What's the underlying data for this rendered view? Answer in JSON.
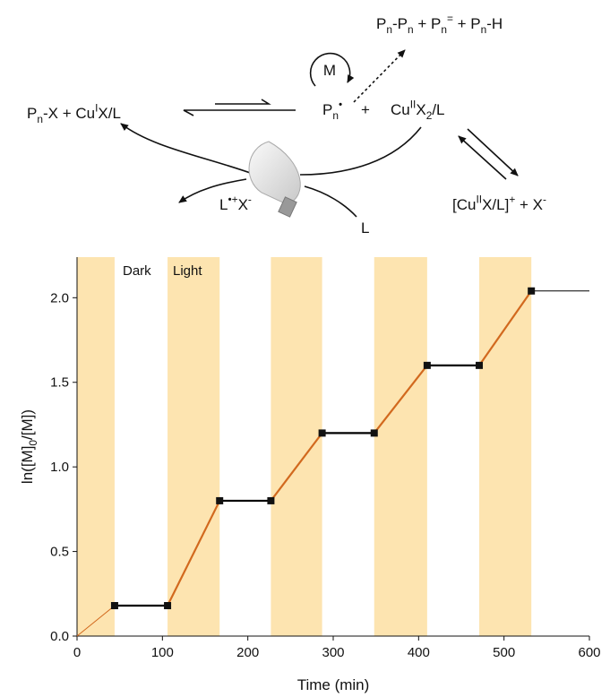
{
  "scheme": {
    "products": [
      {
        "text": "P"
      },
      {
        "sub": "n"
      },
      {
        "text": "-P"
      },
      {
        "sub": "n"
      },
      {
        "text": " + P"
      },
      {
        "sub": "n"
      },
      {
        "sup": "="
      },
      {
        "text": " + P"
      },
      {
        "sub": "n"
      },
      {
        "text": "-H"
      }
    ],
    "mediator": "M",
    "radical": [
      {
        "text": "P"
      },
      {
        "sub": "n"
      },
      {
        "sup": "•"
      }
    ],
    "plus": "+",
    "deactivator": [
      {
        "text": "Cu"
      },
      {
        "sup": "II"
      },
      {
        "text": "X"
      },
      {
        "sub": "2"
      },
      {
        "text": "/L"
      }
    ],
    "dormant": [
      {
        "text": "P"
      },
      {
        "sub": "n"
      },
      {
        "text": "-X + Cu"
      },
      {
        "sup": "I"
      },
      {
        "text": "X/L"
      }
    ],
    "oxidized_ligand": [
      {
        "text": "L"
      },
      {
        "sup": "•+"
      },
      {
        "text": "X"
      },
      {
        "sup": "-"
      }
    ],
    "ligand": "L",
    "complex": [
      {
        "text": "[Cu"
      },
      {
        "sup": "II"
      },
      {
        "text": "X/L]"
      },
      {
        "sup": "+"
      },
      {
        "text": " + X"
      },
      {
        "sup": "-"
      }
    ]
  },
  "chart_data": {
    "type": "line",
    "x_label": "Time (min)",
    "y_label": [
      {
        "text": "ln([M]"
      },
      {
        "sub": "0"
      },
      {
        "text": "/[M])"
      }
    ],
    "x": [
      44,
      106,
      167,
      227,
      287,
      348,
      410,
      471,
      532
    ],
    "values": [
      0.18,
      0.18,
      0.8,
      0.8,
      1.2,
      1.2,
      1.6,
      1.6,
      2.04
    ],
    "dark_color": "#000000",
    "light_color": "#d2691e",
    "band_color": "#fde4b0",
    "light_periods": [
      [
        0,
        44
      ],
      [
        106,
        167
      ],
      [
        227,
        287
      ],
      [
        348,
        410
      ],
      [
        471,
        532
      ]
    ],
    "lead_line": {
      "x": [
        0,
        44
      ],
      "values": [
        0,
        0.18
      ]
    },
    "tail_line": {
      "x": [
        532,
        600
      ],
      "values": [
        2.04,
        2.04
      ]
    },
    "annotations": [
      "Dark",
      "Light"
    ],
    "xlim": [
      0,
      600
    ],
    "xticks": [
      0,
      100,
      200,
      300,
      400,
      500,
      600
    ],
    "ylim": [
      0,
      2.24
    ],
    "yticks": [
      {
        "value": 0,
        "label": "0.0"
      },
      {
        "value": 0.5,
        "label": "0.5"
      },
      {
        "value": 1,
        "label": "1.0"
      },
      {
        "value": 1.5,
        "label": "1.5"
      },
      {
        "value": 2,
        "label": "2.0"
      }
    ]
  }
}
